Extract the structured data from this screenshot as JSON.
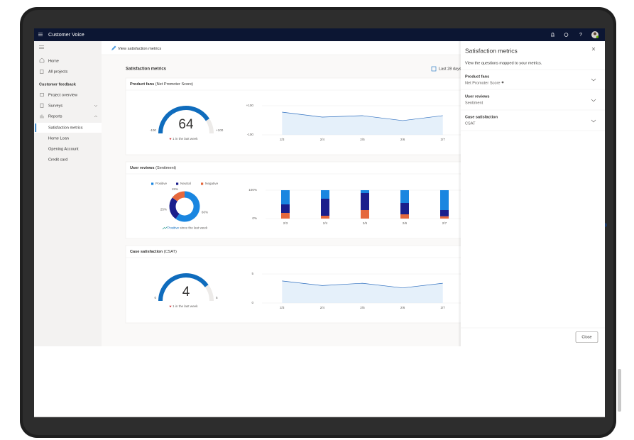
{
  "header": {
    "app_name": "Customer Voice",
    "help": "?"
  },
  "nav": {
    "items": [
      "Home",
      "All projects"
    ],
    "section": "Customer feedback",
    "section_items": [
      "Project overview",
      "Surveys",
      "Reports"
    ],
    "report_items": [
      "Satisfaction metrics",
      "Home Loan",
      "Opening Account",
      "Credit card"
    ]
  },
  "toolbar": {
    "action": "View satisfaction metrics"
  },
  "page": {
    "title": "Satisfaction metrics",
    "date_range": "Last 28 days"
  },
  "cards": [
    {
      "title": "Product fans",
      "subtitle": "(Net Promoter Score)",
      "gauge": {
        "value": 64,
        "lim": [
          -100,
          100
        ],
        "ticks": [
          -100,
          {
            "value": 100,
            "label": "+100"
          }
        ],
        "trend": "1 in the last week"
      },
      "chart": {
        "type": "line",
        "categories": [
          "2/3",
          "2/4",
          "2/5",
          "2/6",
          "2/7"
        ],
        "values": [
          56,
          22,
          32,
          -2,
          32
        ],
        "color": "#2f6fbf",
        "ylim": [
          -100,
          100
        ],
        "yticks": [
          -100,
          {
            "value": 100,
            "label": "+100"
          }
        ]
      }
    },
    {
      "title": "User reviews",
      "subtitle": "(Sentiment)",
      "donut": {
        "values": [
          60,
          25,
          15
        ],
        "value_labels": [
          "60%",
          "25%",
          "15%"
        ],
        "trend_word": "Positive",
        "trend": "since the last week"
      },
      "chart": {
        "type": "bar",
        "stacked": true,
        "categories": [
          "2/3",
          "2/4",
          "2/5",
          "2/6",
          "2/7"
        ],
        "series": [
          {
            "name": "Positive",
            "color": "#1a86e0",
            "values": [
              50,
              30,
              10,
              45,
              70
            ]
          },
          {
            "name": "Neutral",
            "color": "#1b1f8c",
            "values": [
              30,
              60,
              60,
              40,
              22
            ]
          },
          {
            "name": "Negative",
            "color": "#e5683d",
            "values": [
              20,
              10,
              30,
              15,
              8
            ]
          }
        ],
        "ylim": [
          0,
          100
        ],
        "yticks": [
          {
            "value": 0,
            "label": "0%"
          },
          {
            "value": 100,
            "label": "100%"
          }
        ]
      }
    },
    {
      "title": "Case satisfaction",
      "subtitle": "(CSAT)",
      "gauge": {
        "value": 4,
        "lim": [
          0,
          5
        ],
        "ticks": [
          0,
          5
        ],
        "trend": "1 in the last week"
      },
      "chart": {
        "type": "line",
        "categories": [
          "2/3",
          "2/4",
          "2/5",
          "2/6",
          "2/7"
        ],
        "values": [
          3.8,
          3.0,
          3.4,
          2.6,
          3.4
        ],
        "color": "#2f6fbf",
        "ylim": [
          0,
          5
        ],
        "yticks": [
          0,
          5
        ]
      }
    }
  ],
  "panel": {
    "title": "Satisfaction metrics",
    "description": "View the questions mapped to your metrics.",
    "items": [
      {
        "title": "Product fans",
        "subtitle": "Net Promoter Score"
      },
      {
        "title": "User reviews",
        "subtitle": "Sentiment"
      },
      {
        "title": "Case satisfaction",
        "subtitle": "CSAT"
      }
    ],
    "button": "Close"
  }
}
